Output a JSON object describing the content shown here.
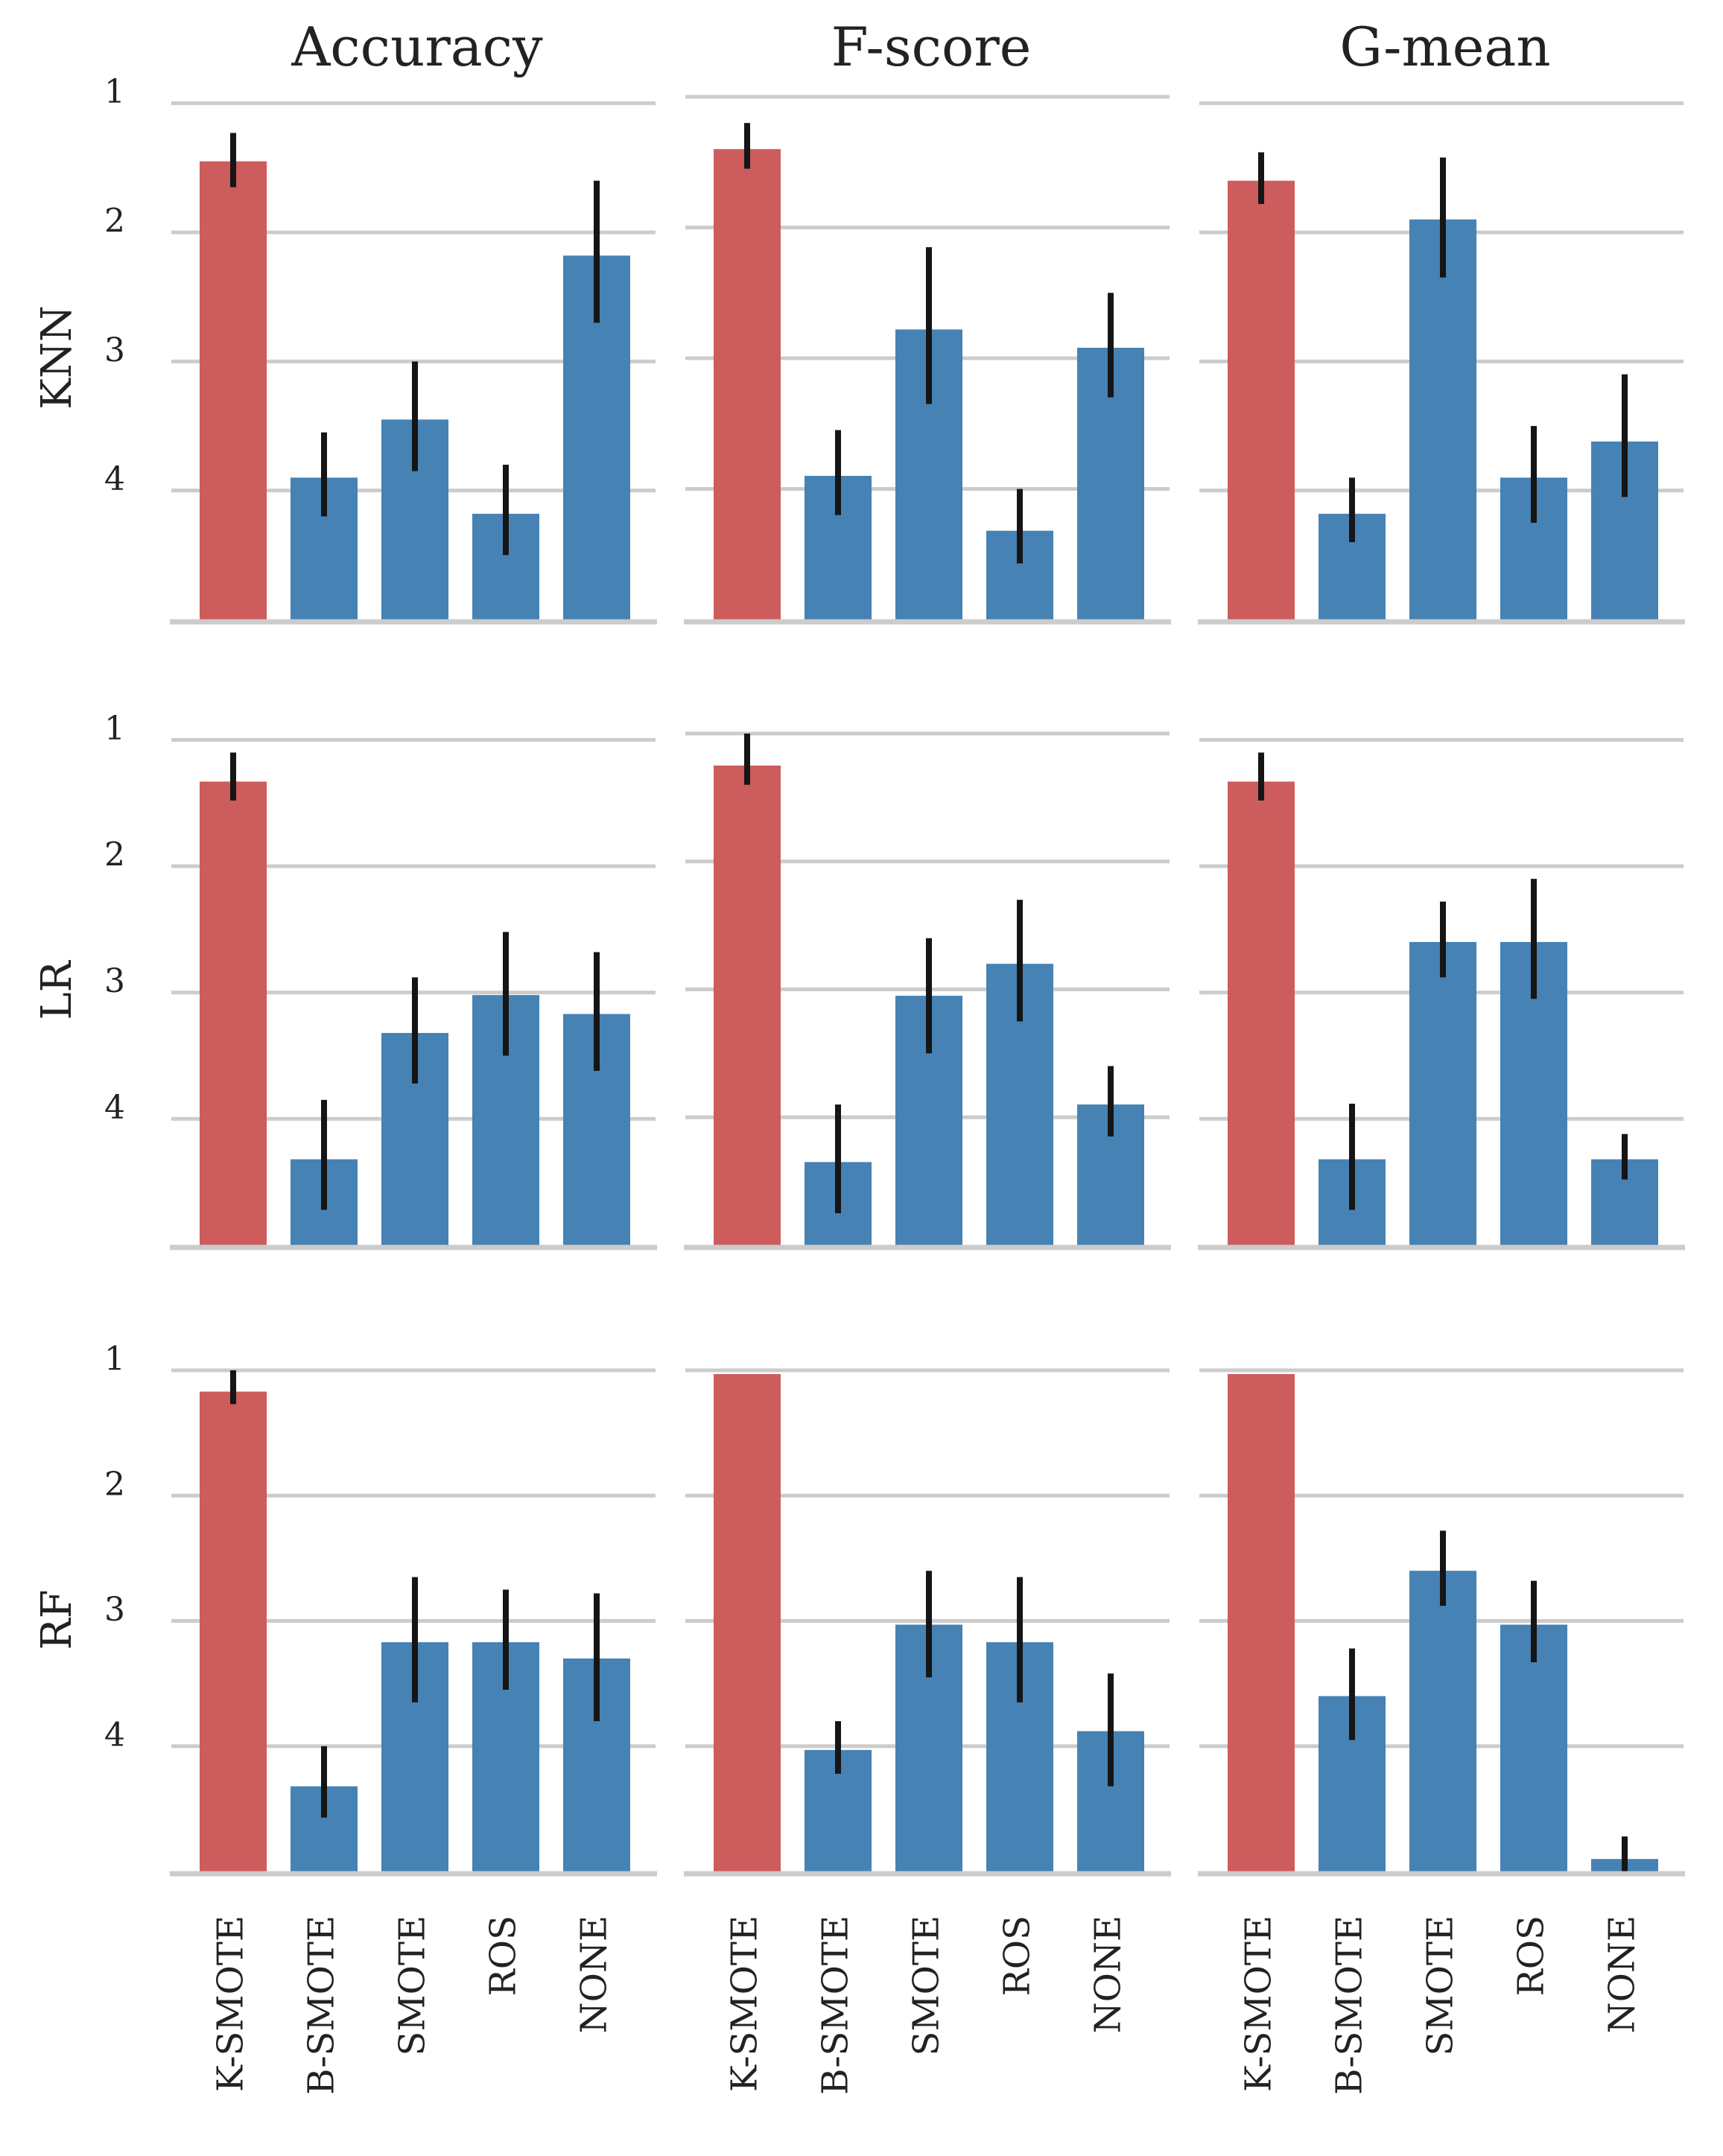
{
  "chart_data": {
    "type": "bar",
    "title": "",
    "col_titles": [
      "Accuracy",
      "F-score",
      "G-mean"
    ],
    "row_titles": [
      "KNN",
      "LR",
      "RF"
    ],
    "categories": [
      "K-SMOTE",
      "B-SMOTE",
      "SMOTE",
      "ROS",
      "NONE"
    ],
    "yticks": [
      "1",
      "2",
      "3",
      "4"
    ],
    "y_axis_inverted": true,
    "bar_baseline": 5,
    "colors": {
      "highlight": "#cd5c5c",
      "default": "#4682b4",
      "error": "#151515",
      "grid": "#cccccc"
    },
    "highlight_category": "K-SMOTE",
    "grid": true,
    "panels": [
      {
        "row": "KNN",
        "col": "Accuracy",
        "ylim": [
          5,
          0.95
        ],
        "values": [
          1.45,
          3.9,
          3.45,
          4.18,
          2.18
        ],
        "err_low": [
          1.23,
          3.55,
          3.0,
          3.8,
          1.6
        ],
        "err_high": [
          1.65,
          4.2,
          3.85,
          4.5,
          2.7
        ]
      },
      {
        "row": "KNN",
        "col": "F-score",
        "ylim": [
          5,
          1.0
        ],
        "values": [
          1.4,
          3.9,
          2.78,
          4.32,
          2.92
        ],
        "err_low": [
          1.2,
          3.55,
          2.15,
          4.0,
          2.5
        ],
        "err_high": [
          1.55,
          4.2,
          3.35,
          4.57,
          3.3
        ]
      },
      {
        "row": "KNN",
        "col": "G-mean",
        "ylim": [
          5,
          0.95
        ],
        "values": [
          1.6,
          4.18,
          1.9,
          3.9,
          3.62
        ],
        "err_low": [
          1.38,
          3.9,
          1.42,
          3.5,
          3.1
        ],
        "err_high": [
          1.78,
          4.4,
          2.35,
          4.25,
          4.05
        ]
      },
      {
        "row": "LR",
        "col": "Accuracy",
        "ylim": [
          5,
          0.95
        ],
        "values": [
          1.33,
          4.32,
          3.32,
          3.02,
          3.17
        ],
        "err_low": [
          1.1,
          3.85,
          2.88,
          2.52,
          2.68
        ],
        "err_high": [
          1.48,
          4.72,
          3.72,
          3.5,
          3.62
        ]
      },
      {
        "row": "LR",
        "col": "F-score",
        "ylim": [
          5,
          1.0
        ],
        "values": [
          1.25,
          4.35,
          3.05,
          2.8,
          3.9
        ],
        "err_low": [
          1.0,
          3.9,
          2.6,
          2.3,
          3.6
        ],
        "err_high": [
          1.4,
          4.75,
          3.5,
          3.25,
          4.15
        ]
      },
      {
        "row": "LR",
        "col": "G-mean",
        "ylim": [
          5,
          0.95
        ],
        "values": [
          1.33,
          4.32,
          2.6,
          2.6,
          4.32
        ],
        "err_low": [
          1.1,
          3.88,
          2.28,
          2.1,
          4.12
        ],
        "err_high": [
          1.48,
          4.72,
          2.88,
          3.05,
          4.48
        ]
      },
      {
        "row": "RF",
        "col": "Accuracy",
        "ylim": [
          5,
          1.0
        ],
        "values": [
          1.17,
          4.32,
          3.17,
          3.17,
          3.3
        ],
        "err_low": [
          1.0,
          4.0,
          2.65,
          2.75,
          2.78
        ],
        "err_high": [
          1.27,
          4.57,
          3.65,
          3.55,
          3.8
        ]
      },
      {
        "row": "RF",
        "col": "F-score",
        "ylim": [
          5,
          1.0
        ],
        "values": [
          1.03,
          4.03,
          3.03,
          3.17,
          3.88
        ],
        "err_low": [
          1.03,
          3.8,
          2.6,
          2.65,
          3.42
        ],
        "err_high": [
          1.03,
          4.22,
          3.45,
          3.65,
          4.32
        ]
      },
      {
        "row": "RF",
        "col": "G-mean",
        "ylim": [
          5,
          1.0
        ],
        "values": [
          1.03,
          3.6,
          2.6,
          3.03,
          4.9
        ],
        "err_low": [
          1.03,
          3.22,
          2.28,
          2.68,
          4.72
        ],
        "err_high": [
          1.03,
          3.95,
          2.88,
          3.33,
          5.0
        ]
      }
    ]
  }
}
